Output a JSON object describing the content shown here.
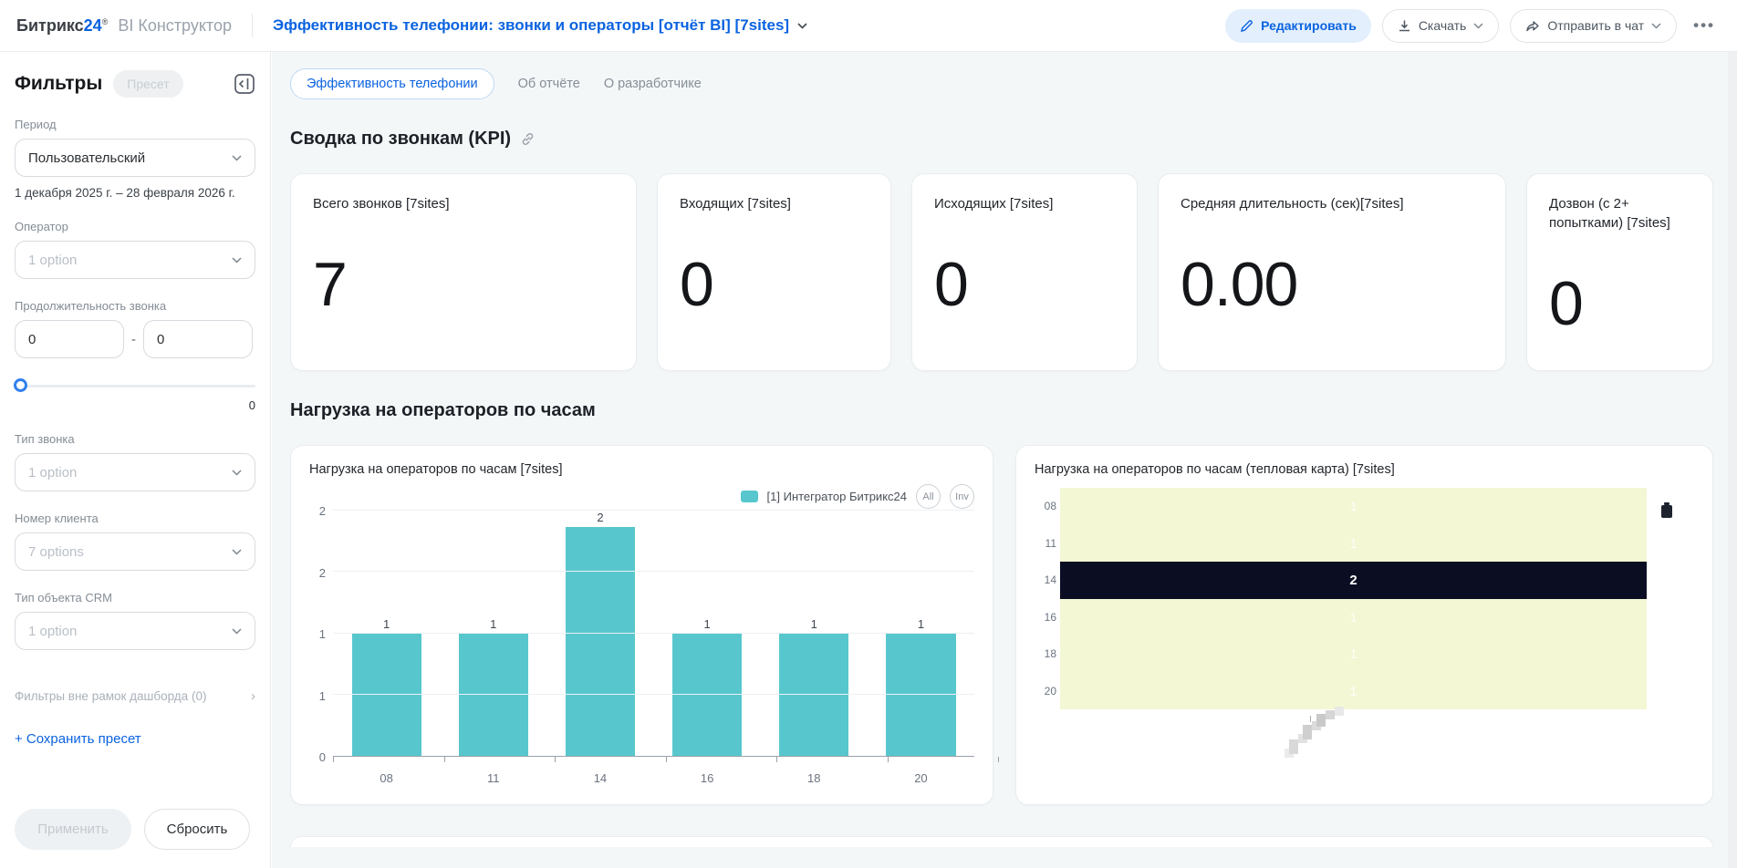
{
  "colors": {
    "accent_blue": "#0b63e0",
    "bar_teal": "#57c7cd",
    "heatmap_light": "#f3f7d4",
    "heatmap_dark": "#0b0e23",
    "edit_button_bg": "#e3effc"
  },
  "header": {
    "brand": "Битрикс",
    "brand_number": "24",
    "brand_reg": "®",
    "brand_suffix": "BI Конструктор",
    "report_title": "Эффективность телефонии: звонки и операторы [отчёт BI] [7sites]",
    "edit_button": "Редактировать",
    "download_button": "Скачать",
    "send_button": "Отправить в чат"
  },
  "sidebar": {
    "title": "Фильтры",
    "preset_button": "Пресет",
    "period": {
      "label": "Период",
      "value": "Пользовательский",
      "range": "1 декабря 2025 г. – 28 февраля 2026 г."
    },
    "operator": {
      "label": "Оператор",
      "placeholder": "1 option"
    },
    "duration": {
      "label": "Продолжительность звонка",
      "from": "0",
      "to": "0",
      "separator": "-",
      "slider_value": "0"
    },
    "call_type": {
      "label": "Тип звонка",
      "placeholder": "1 option"
    },
    "client_number": {
      "label": "Номер клиента",
      "placeholder": "7 options"
    },
    "crm_object": {
      "label": "Тип объекта CRM",
      "placeholder": "1 option"
    },
    "external_filters": "Фильтры вне рамок дашборда (0)",
    "save_preset": "+ Сохранить пресет",
    "apply_button": "Применить",
    "reset_button": "Сбросить"
  },
  "tabs": [
    {
      "label": "Эффективность телефонии",
      "active": true
    },
    {
      "label": "Об отчёте",
      "active": false
    },
    {
      "label": "О разработчике",
      "active": false
    }
  ],
  "kpi": {
    "heading": "Сводка по звонкам (KPI)",
    "cards": [
      {
        "title": "Всего звонков [7sites]",
        "value": "7"
      },
      {
        "title": "Входящих [7sites]",
        "value": "0"
      },
      {
        "title": "Исходящих [7sites]",
        "value": "0"
      },
      {
        "title": "Средняя длительность (сек)[7sites]",
        "value": "0.00"
      },
      {
        "title": "Дозвон (с 2+ попытками) [7sites]",
        "value": "0"
      }
    ]
  },
  "hourly_section": {
    "heading": "Нагрузка на операторов по часам"
  },
  "chart_data": [
    {
      "type": "bar",
      "title": "Нагрузка на операторов по часам [7sites]",
      "categories": [
        "08",
        "11",
        "14",
        "16",
        "18",
        "20"
      ],
      "values": [
        1,
        1,
        2,
        1,
        1,
        1
      ],
      "series_name": "[1] Интегратор Битрикс24",
      "legend_buttons": [
        "All",
        "Inv"
      ],
      "bar_color": "#57c7cd",
      "ylim": [
        0,
        2
      ],
      "y_tick_labels": [
        "0",
        "1",
        "1",
        "2",
        "2"
      ],
      "grid": true,
      "legend_position": "top-right",
      "value_labels": true
    },
    {
      "type": "heatmap",
      "title": "Нагрузка на операторов по часам (тепловая карта) [7sites]",
      "rows": [
        "08",
        "11",
        "14",
        "16",
        "18",
        "20"
      ],
      "columns": [
        "[1] Интегратор Битрикс24"
      ],
      "values": [
        [
          1
        ],
        [
          1
        ],
        [
          2
        ],
        [
          1
        ],
        [
          1
        ],
        [
          1
        ]
      ],
      "color_scale": {
        "min_value": 1,
        "min_color": "#f3f7d4",
        "max_value": 2,
        "max_color": "#0b0e23"
      }
    }
  ]
}
